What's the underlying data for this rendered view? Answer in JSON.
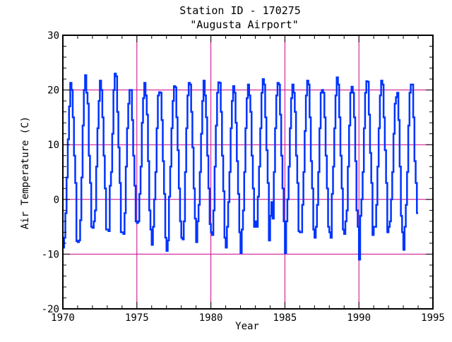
{
  "chart_data": {
    "type": "line",
    "title": "Station ID - 170275",
    "subtitle": "\"Augusta Airport\"",
    "xlabel": "Year",
    "ylabel": "Air Temperature (C)",
    "xlim": [
      1970,
      1995
    ],
    "ylim": [
      -20,
      30
    ],
    "x_ticks": [
      1970,
      1975,
      1980,
      1985,
      1990,
      1995
    ],
    "y_ticks": [
      -20,
      -10,
      0,
      10,
      20,
      30
    ],
    "x_tick_labels": [
      "1970",
      "1975",
      "1980",
      "1985",
      "1990",
      "1995"
    ],
    "y_tick_labels": [
      "-20",
      "-10",
      "0",
      "10",
      "20",
      "30"
    ],
    "grid": {
      "on": true,
      "x_lines": [
        1975,
        1980,
        1985,
        1990
      ],
      "y_lines": [
        -10,
        0,
        10,
        20
      ],
      "color": "#cc0088"
    },
    "series": [
      {
        "color": "#0033ff",
        "step": "monthly",
        "start": [
          1970,
          1
        ],
        "monthly_mean_c": [
          -8.8,
          -7.0,
          -2.5,
          4.0,
          11.0,
          17.0,
          21.3,
          20.0,
          15.0,
          8.0,
          3.0,
          -7.6,
          -7.8,
          -7.5,
          -3.8,
          4.0,
          13.5,
          20.0,
          22.7,
          19.5,
          17.5,
          8.0,
          3.0,
          -5.0,
          -5.2,
          -4.0,
          -2.0,
          6.0,
          13.0,
          18.0,
          21.7,
          20.0,
          15.0,
          8.0,
          2.0,
          -5.5,
          -5.5,
          -5.8,
          2.5,
          5.0,
          12.0,
          20.0,
          23.0,
          22.5,
          16.0,
          9.5,
          3.0,
          -6.0,
          -6.0,
          -6.3,
          -2.5,
          6.0,
          13.0,
          17.5,
          20.0,
          20.0,
          14.5,
          8.0,
          2.5,
          -4.0,
          -4.3,
          -4.0,
          1.0,
          6.0,
          14.0,
          18.5,
          21.3,
          19.0,
          15.5,
          7.0,
          -2.0,
          -5.5,
          -8.3,
          -5.0,
          0.0,
          5.0,
          13.0,
          19.0,
          19.6,
          19.5,
          14.5,
          7.0,
          1.0,
          -7.0,
          -9.4,
          -7.5,
          0.5,
          6.0,
          13.0,
          18.0,
          20.7,
          20.5,
          15.0,
          9.0,
          2.0,
          -4.0,
          -7.0,
          -7.3,
          -4.0,
          5.0,
          13.0,
          19.0,
          21.3,
          21.0,
          16.0,
          9.5,
          2.0,
          -3.5,
          -7.8,
          -4.0,
          -1.0,
          5.0,
          12.0,
          18.0,
          21.7,
          19.0,
          15.0,
          8.0,
          2.0,
          -4.5,
          -6.0,
          -6.5,
          -2.0,
          6.0,
          13.5,
          19.5,
          21.4,
          21.3,
          16.0,
          8.0,
          1.5,
          -7.0,
          -8.8,
          -5.0,
          -0.5,
          5.0,
          13.0,
          18.0,
          20.7,
          19.5,
          14.0,
          7.0,
          1.0,
          -6.0,
          -9.8,
          -5.5,
          -2.0,
          5.0,
          13.0,
          18.5,
          21.0,
          19.0,
          16.0,
          8.0,
          2.0,
          -5.0,
          -4.0,
          -5.0,
          0.5,
          6.0,
          13.0,
          19.5,
          22.0,
          21.0,
          15.0,
          9.0,
          3.0,
          -7.5,
          -3.0,
          -0.5,
          -3.5,
          5.0,
          13.0,
          19.0,
          21.3,
          21.0,
          15.5,
          8.0,
          2.0,
          -4.0,
          -9.8,
          -4.0,
          0.0,
          6.0,
          13.0,
          18.5,
          21.0,
          19.5,
          16.0,
          8.0,
          3.0,
          -5.8,
          -6.0,
          -6.0,
          -1.0,
          5.0,
          12.5,
          19.0,
          21.7,
          21.0,
          15.0,
          7.0,
          2.0,
          -5.5,
          -7.0,
          -5.0,
          -1.0,
          5.0,
          13.0,
          19.5,
          20.0,
          19.5,
          15.0,
          8.0,
          2.0,
          -5.0,
          -6.0,
          -7.0,
          1.0,
          6.0,
          13.0,
          19.0,
          22.3,
          21.0,
          15.0,
          8.0,
          2.0,
          -5.5,
          -6.3,
          -4.0,
          -2.0,
          6.0,
          13.5,
          19.5,
          20.6,
          19.5,
          15.0,
          7.0,
          -2.0,
          -5.0,
          -11.0,
          -3.0,
          0.0,
          5.0,
          13.0,
          19.5,
          21.6,
          21.5,
          15.5,
          8.5,
          3.0,
          -6.5,
          -5.0,
          -5.0,
          -1.0,
          6.0,
          13.0,
          19.0,
          21.7,
          21.0,
          15.0,
          9.0,
          3.0,
          -6.0,
          -5.0,
          -4.0,
          0.0,
          5.0,
          12.0,
          17.5,
          18.7,
          19.5,
          14.5,
          6.0,
          -3.0,
          -6.0,
          -9.2,
          -5.0,
          -1.0,
          5.0,
          13.5,
          19.5,
          21.0,
          21.0,
          15.0,
          7.0,
          3.0,
          -2.5
        ]
      }
    ]
  }
}
